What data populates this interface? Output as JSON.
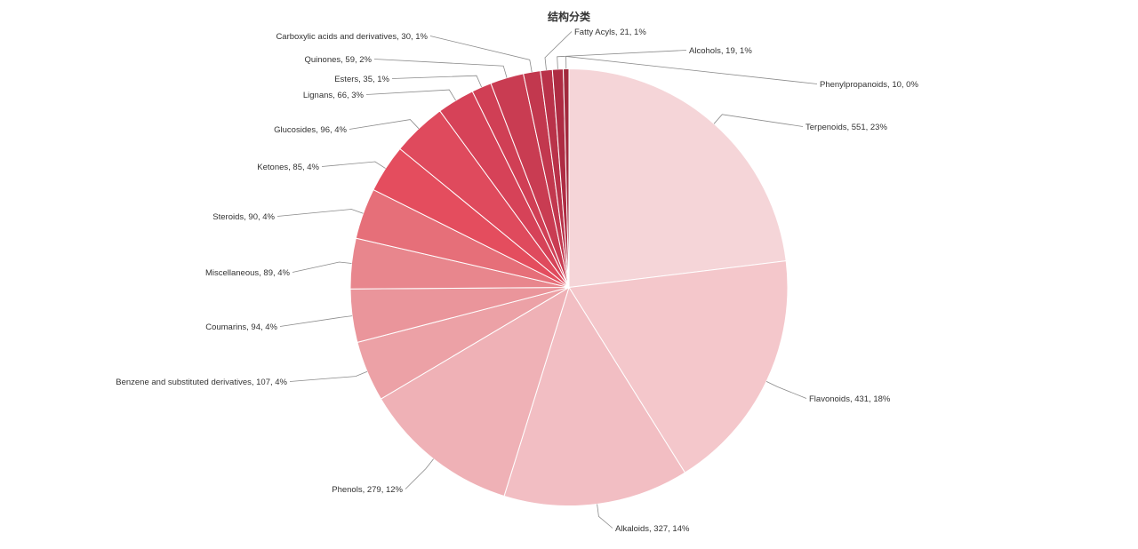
{
  "chart_data": {
    "type": "pie",
    "title": "结构分类",
    "categories": [
      "Terpenoids",
      "Flavonoids",
      "Alkaloids",
      "Phenols",
      "Benzene and substituted derivatives",
      "Coumarins",
      "Miscellaneous",
      "Steroids",
      "Ketones",
      "Glucosides",
      "Lignans",
      "Esters",
      "Quinones",
      "Carboxylic acids and derivatives",
      "Fatty Acyls",
      "Alcohols",
      "Phenylpropanoids"
    ],
    "values": [
      551,
      431,
      327,
      279,
      107,
      94,
      89,
      90,
      85,
      96,
      66,
      35,
      59,
      30,
      21,
      19,
      10
    ],
    "labels": [
      "Terpenoids, 551, 23%",
      "Flavonoids, 431, 18%",
      "Alkaloids, 327, 14%",
      "Phenols, 279, 12%",
      "Benzene and substituted derivatives, 107, 4%",
      "Coumarins, 94, 4%",
      "Miscellaneous, 89, 4%",
      "Steroids, 90, 4%",
      "Ketones, 85, 4%",
      "Glucosides, 96, 4%",
      "Lignans, 66, 3%",
      "Esters, 35, 1%",
      "Quinones, 59, 2%",
      "Carboxylic acids and derivatives, 30, 1%",
      "Fatty Acyls, 21, 1%",
      "Alcohols, 19, 1%",
      "Phenylpropanoids, 10, 0%"
    ],
    "colors": [
      "#f5d5d8",
      "#f4c7cb",
      "#f2bec3",
      "#efb1b6",
      "#eca1a6",
      "#ea959b",
      "#e8868d",
      "#e66f79",
      "#e44d5e",
      "#df4a5d",
      "#d64258",
      "#d03f55",
      "#c93c52",
      "#c2384e",
      "#b93249",
      "#ae2c43",
      "#a12a3d"
    ],
    "direction": "clockwise",
    "start_angle": "12 o'clock",
    "legend": "none"
  }
}
